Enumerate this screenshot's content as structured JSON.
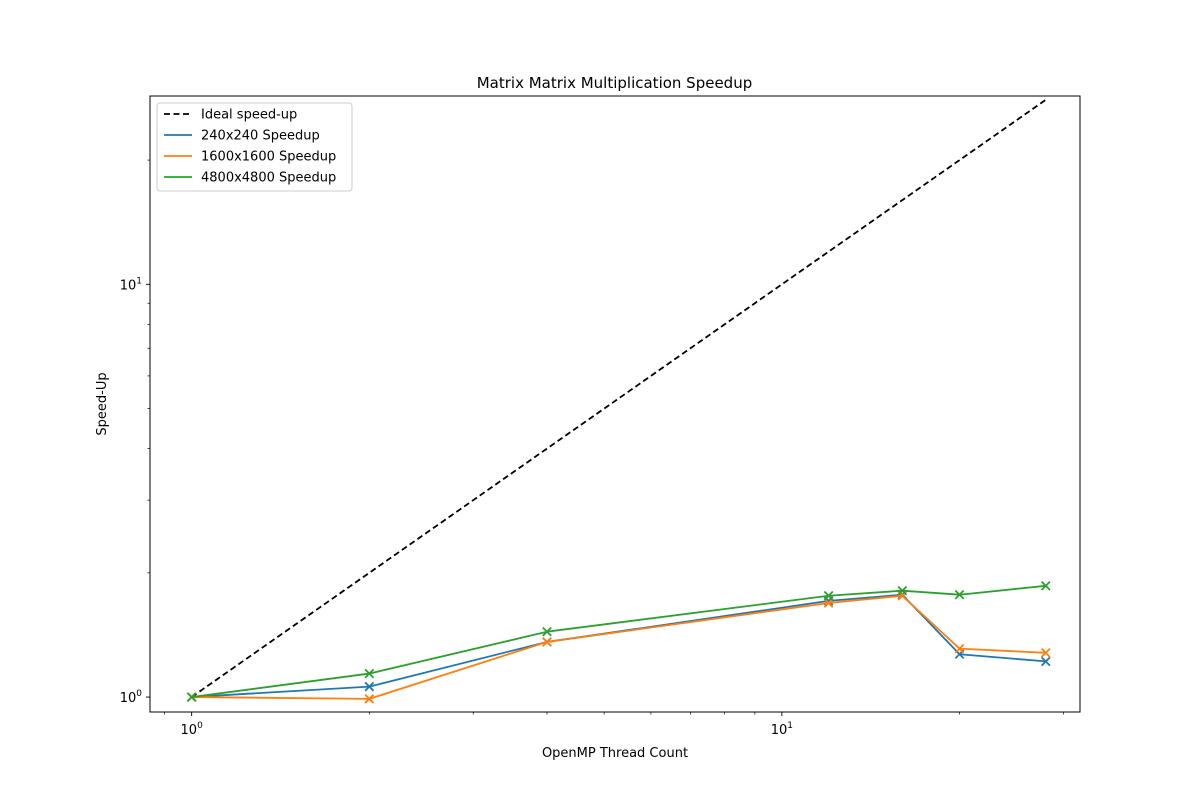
{
  "chart_data": {
    "type": "line",
    "title": "Matrix Matrix Multiplication Speedup",
    "xlabel": "OpenMP Thread Count",
    "ylabel": "Speed-Up",
    "xscale": "log",
    "yscale": "log",
    "xlim": [
      0.85,
      32
    ],
    "ylim": [
      0.92,
      28.6
    ],
    "grid": false,
    "legend_position": "top-left",
    "x": [
      1,
      2,
      4,
      12,
      16,
      20,
      28
    ],
    "x_major_ticks": [
      {
        "value": 1,
        "base": "10",
        "exp": "0"
      },
      {
        "value": 10,
        "base": "10",
        "exp": "1"
      }
    ],
    "y_major_ticks": [
      {
        "value": 1,
        "base": "10",
        "exp": "0"
      },
      {
        "value": 10,
        "base": "10",
        "exp": "1"
      }
    ],
    "series": [
      {
        "name": "Ideal speed-up",
        "color": "#000000",
        "dash": true,
        "marker": "none",
        "x": [
          1,
          28
        ],
        "values": [
          1,
          28
        ]
      },
      {
        "name": "240x240 Speedup",
        "color": "#1f77b4",
        "dash": false,
        "marker": "x",
        "x": [
          1,
          2,
          4,
          12,
          16,
          20,
          28
        ],
        "values": [
          1.0,
          1.06,
          1.36,
          1.71,
          1.77,
          1.27,
          1.22
        ]
      },
      {
        "name": "1600x1600 Speedup",
        "color": "#ff7f0e",
        "dash": false,
        "marker": "x",
        "x": [
          1,
          2,
          4,
          12,
          16,
          20,
          28
        ],
        "values": [
          1.0,
          0.99,
          1.36,
          1.69,
          1.76,
          1.31,
          1.28
        ]
      },
      {
        "name": "4800x4800 Speedup",
        "color": "#2ca02c",
        "dash": false,
        "marker": "x",
        "x": [
          1,
          2,
          4,
          12,
          16,
          20,
          28
        ],
        "values": [
          1.0,
          1.14,
          1.44,
          1.76,
          1.81,
          1.77,
          1.86
        ]
      }
    ]
  }
}
